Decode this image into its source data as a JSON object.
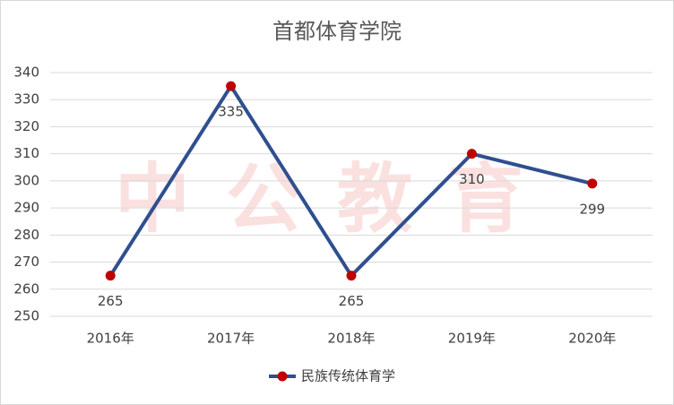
{
  "chart_data": {
    "type": "line",
    "title": "首都体育学院",
    "watermark": "中公教育",
    "categories": [
      "2016年",
      "2017年",
      "2018年",
      "2019年",
      "2020年"
    ],
    "series": [
      {
        "name": "民族传统体育学",
        "color": "#2f4f8f",
        "marker_color": "#c00000",
        "values": [
          265,
          335,
          265,
          310,
          299
        ]
      }
    ],
    "ylim": [
      250,
      340
    ],
    "yticks": [
      250,
      260,
      270,
      280,
      290,
      300,
      310,
      320,
      330,
      340
    ],
    "grid": true,
    "legend": "bottom"
  }
}
